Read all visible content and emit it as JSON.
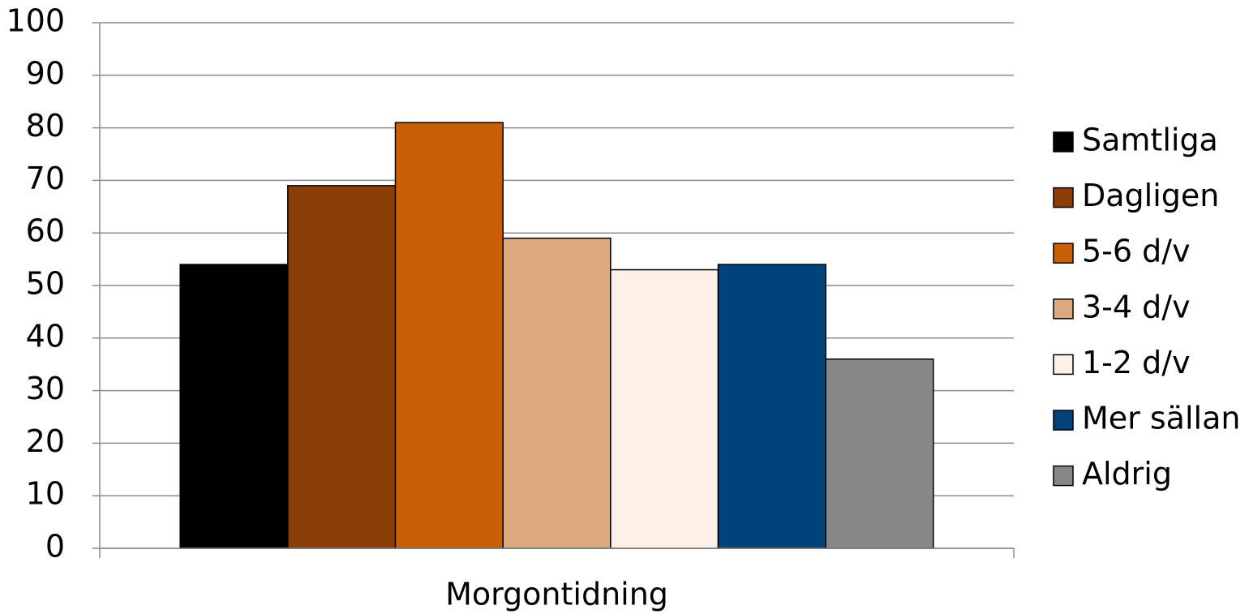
{
  "chart_data": {
    "type": "bar",
    "categories": [
      "Morgontidning"
    ],
    "series": [
      {
        "name": "Samtliga",
        "color": "#000000",
        "values": [
          54
        ]
      },
      {
        "name": "Dagligen",
        "color": "#8b3e06",
        "values": [
          69
        ]
      },
      {
        "name": "5-6 d/v",
        "color": "#c95f07",
        "values": [
          81
        ]
      },
      {
        "name": "3-4 d/v",
        "color": "#dca97e",
        "values": [
          59
        ]
      },
      {
        "name": "1-2 d/v",
        "color": "#fdf0e6",
        "values": [
          53
        ]
      },
      {
        "name": "Mer sällan",
        "color": "#00427a",
        "values": [
          54
        ]
      },
      {
        "name": "Aldrig",
        "color": "#878787",
        "values": [
          36
        ]
      }
    ],
    "ylim": [
      0,
      100
    ],
    "yticks": [
      0,
      10,
      20,
      30,
      40,
      50,
      60,
      70,
      80,
      90,
      100
    ],
    "grid": true,
    "legend": "right"
  }
}
